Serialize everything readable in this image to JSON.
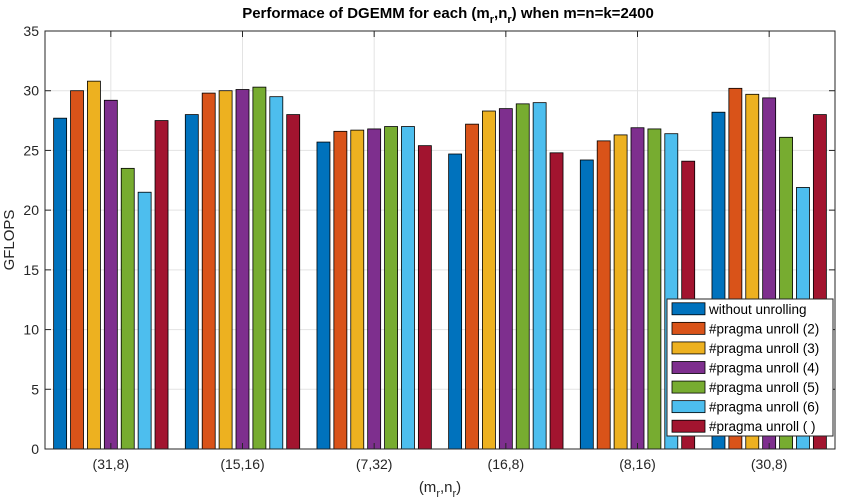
{
  "chart_data": {
    "type": "bar",
    "title": {
      "main": "Performace of DGEMM for each (m",
      "sub1": "r",
      "mid": ",n",
      "sub2": "r",
      "tail": ") when m=n=k=2400"
    },
    "xlabel": {
      "open": "(m",
      "sub1": "r",
      "mid": ",n",
      "sub2": "r",
      "close": ")"
    },
    "ylabel": "GFLOPS",
    "ylim": [
      0,
      35
    ],
    "yticks": [
      0,
      5,
      10,
      15,
      20,
      25,
      30,
      35
    ],
    "grid": true,
    "legend_position": "bottom-right",
    "categories": [
      "(31,8)",
      "(15,16)",
      "(7,32)",
      "(16,8)",
      "(8,16)",
      "(30,8)"
    ],
    "series": [
      {
        "name": "without unrolling",
        "color": "#0072BD",
        "values": [
          27.7,
          28.0,
          25.7,
          24.7,
          24.2,
          28.2
        ]
      },
      {
        "name": "#pragma unroll (2)",
        "color": "#D95319",
        "values": [
          30.0,
          29.8,
          26.6,
          27.2,
          25.8,
          30.2
        ]
      },
      {
        "name": "#pragma unroll (3)",
        "color": "#EDB120",
        "values": [
          30.8,
          30.0,
          26.7,
          28.3,
          26.3,
          29.7
        ]
      },
      {
        "name": "#pragma unroll (4)",
        "color": "#7E2F8E",
        "values": [
          29.2,
          30.1,
          26.8,
          28.5,
          26.9,
          29.4
        ]
      },
      {
        "name": "#pragma unroll (5)",
        "color": "#77AC30",
        "values": [
          23.5,
          30.3,
          27.0,
          28.9,
          26.8,
          26.1
        ]
      },
      {
        "name": "#pragma unroll (6)",
        "color": "#4DBEEE",
        "values": [
          21.5,
          29.5,
          27.0,
          29.0,
          26.4,
          21.9
        ]
      },
      {
        "name": "#pragma unroll ( )",
        "color": "#A2142F",
        "values": [
          27.5,
          28.0,
          25.4,
          24.8,
          24.1,
          28.0
        ]
      }
    ]
  }
}
